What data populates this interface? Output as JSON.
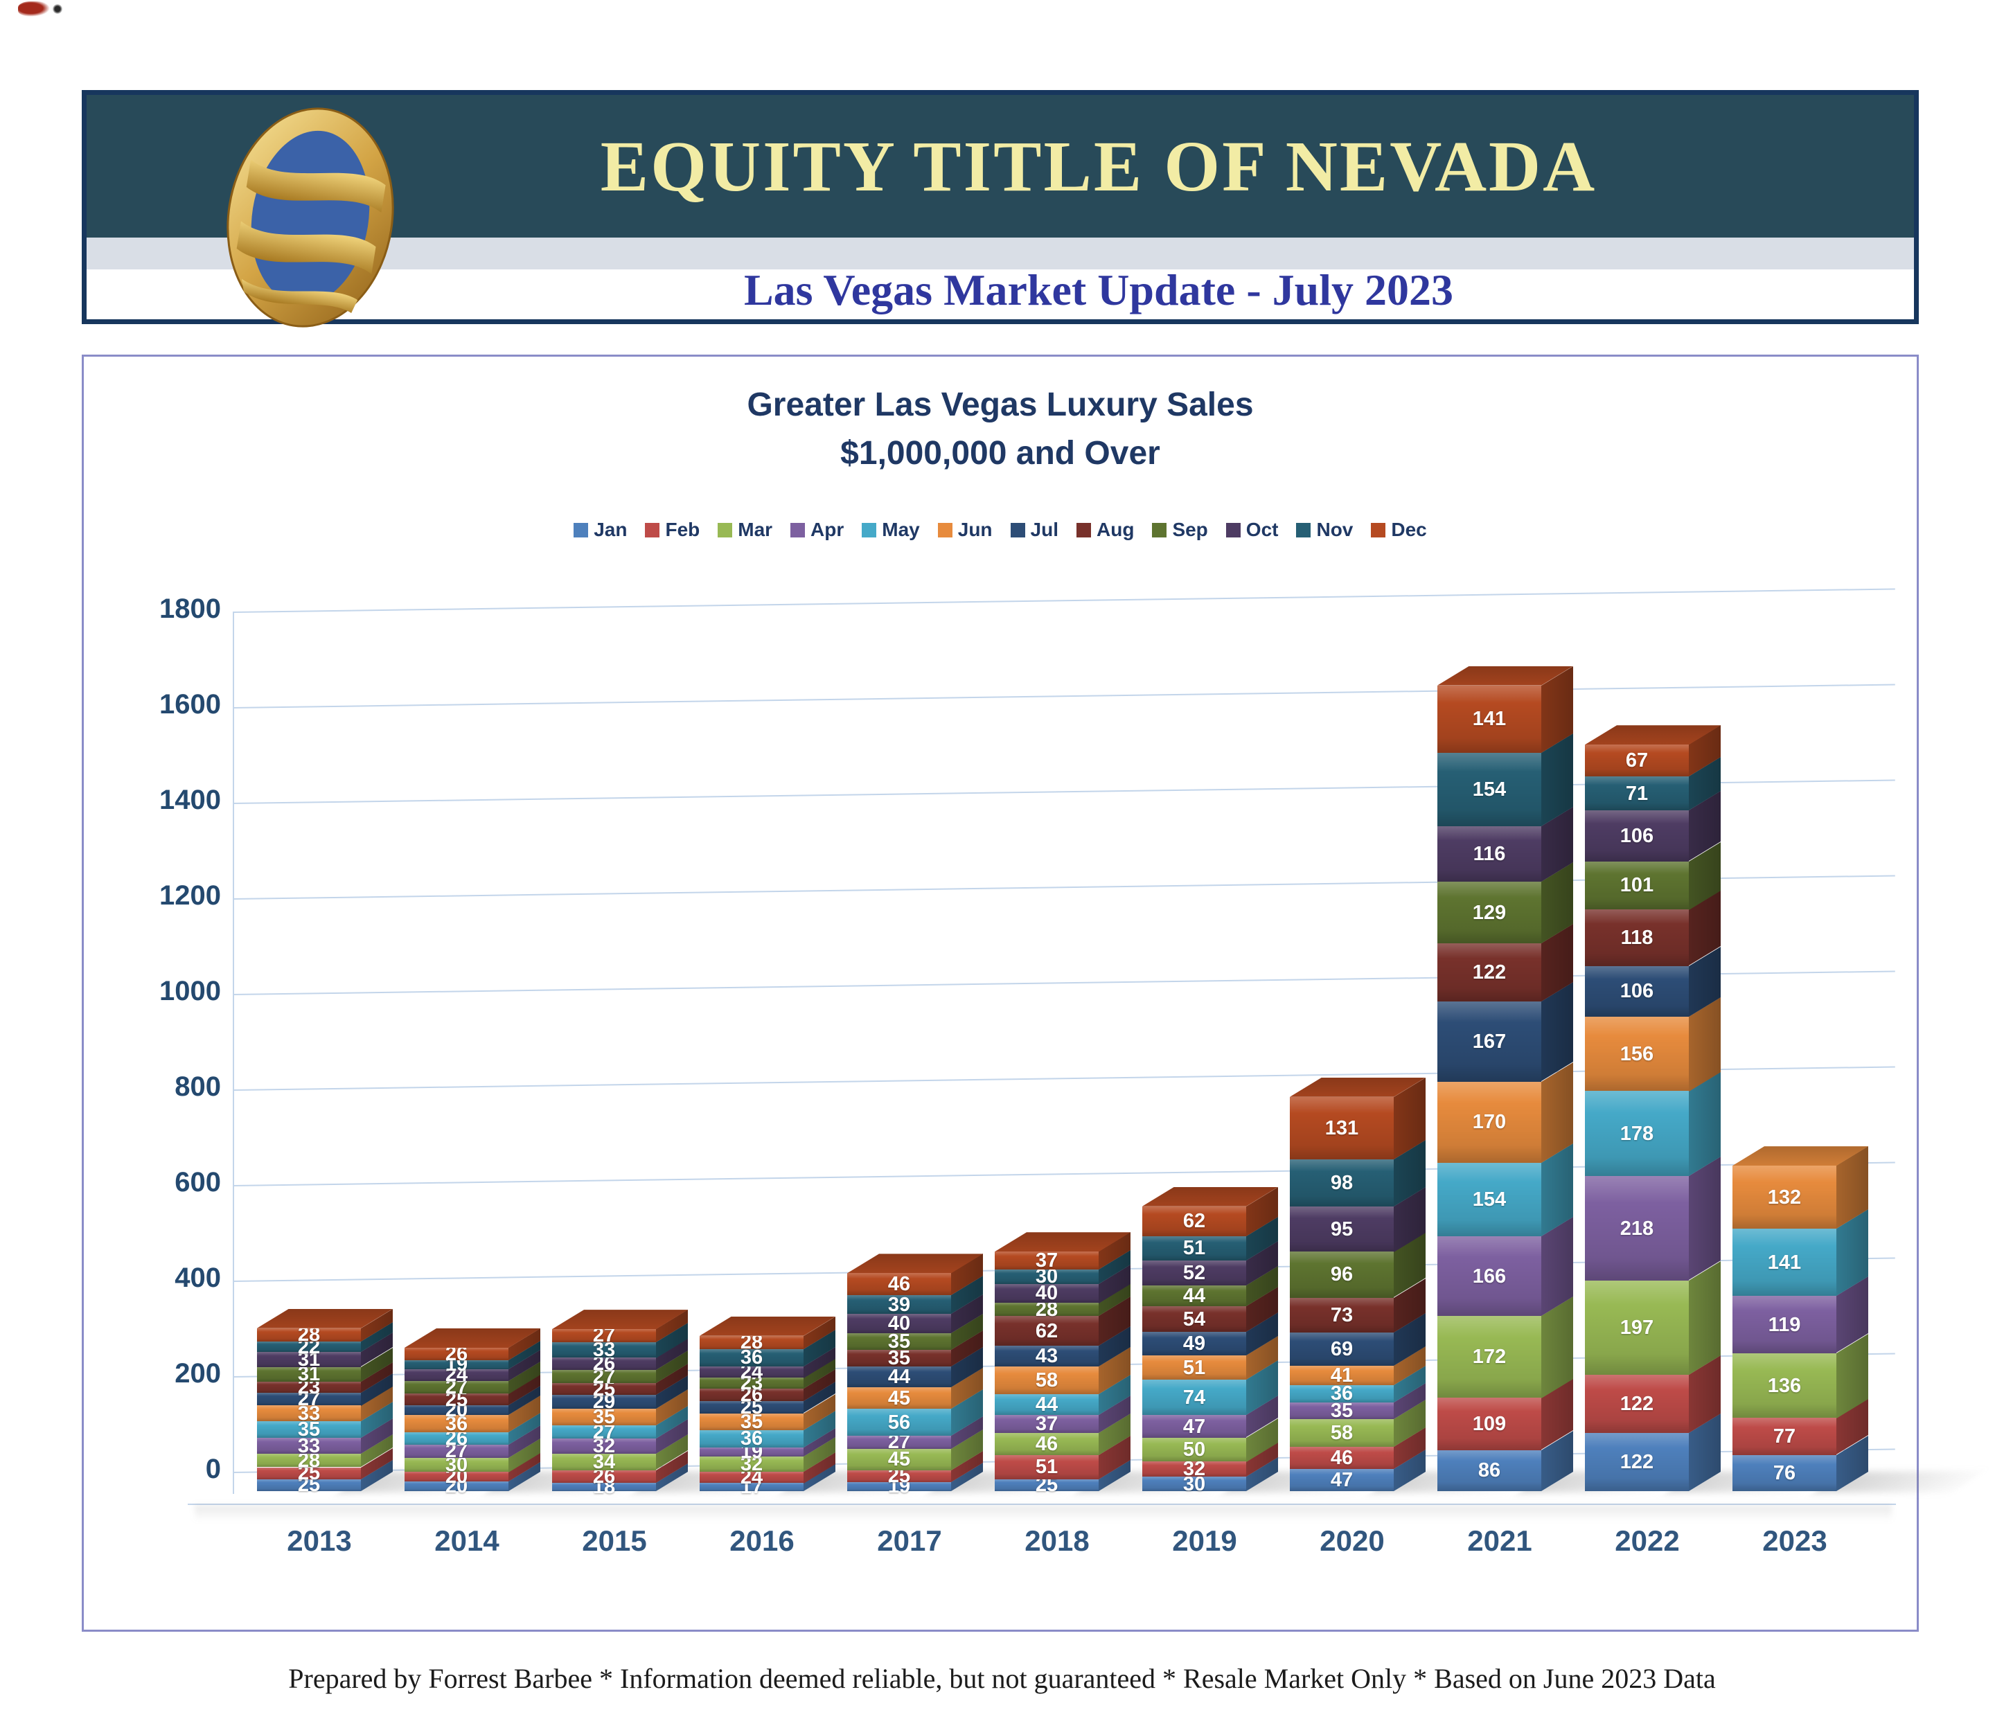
{
  "header": {
    "company": "EQUITY TITLE OF NEVADA",
    "subtitle": "Las Vegas Market Update - July 2023"
  },
  "chart": {
    "title_line1": "Greater Las Vegas Luxury Sales",
    "title_line2": "$1,000,000 and Over"
  },
  "footer": {
    "text": "Prepared by Forrest Barbee * Information deemed reliable, but not guaranteed * Resale Market Only * Based on June 2023 Data"
  },
  "chart_data": {
    "type": "bar",
    "stacked": true,
    "style": "3d-column",
    "title": "Greater Las Vegas Luxury Sales $1,000,000 and Over",
    "categories": [
      "2013",
      "2014",
      "2015",
      "2016",
      "2017",
      "2018",
      "2019",
      "2020",
      "2021",
      "2022",
      "2023"
    ],
    "series": [
      {
        "name": "Jan",
        "color": "#4E80BC",
        "values": [
          25,
          20,
          18,
          17,
          19,
          25,
          30,
          47,
          86,
          122,
          76
        ]
      },
      {
        "name": "Feb",
        "color": "#BE4B48",
        "values": [
          25,
          20,
          26,
          24,
          25,
          51,
          32,
          46,
          109,
          122,
          77
        ]
      },
      {
        "name": "Mar",
        "color": "#98B954",
        "values": [
          28,
          30,
          34,
          32,
          45,
          46,
          50,
          58,
          172,
          197,
          136
        ]
      },
      {
        "name": "Apr",
        "color": "#7D60A0",
        "values": [
          33,
          27,
          32,
          19,
          27,
          37,
          47,
          35,
          166,
          218,
          119
        ]
      },
      {
        "name": "May",
        "color": "#45A9C8",
        "values": [
          35,
          26,
          27,
          36,
          56,
          44,
          74,
          36,
          154,
          178,
          141
        ]
      },
      {
        "name": "Jun",
        "color": "#E78B3D",
        "values": [
          33,
          36,
          35,
          35,
          45,
          58,
          51,
          41,
          170,
          156,
          132
        ]
      },
      {
        "name": "Jul",
        "color": "#2D4D76",
        "values": [
          27,
          20,
          29,
          25,
          44,
          43,
          49,
          69,
          167,
          106,
          null
        ]
      },
      {
        "name": "Aug",
        "color": "#78312B",
        "values": [
          23,
          25,
          25,
          26,
          35,
          62,
          54,
          73,
          122,
          118,
          null
        ]
      },
      {
        "name": "Sep",
        "color": "#5E7430",
        "values": [
          31,
          27,
          27,
          23,
          35,
          28,
          44,
          96,
          129,
          101,
          null
        ]
      },
      {
        "name": "Oct",
        "color": "#4E3C63",
        "values": [
          31,
          24,
          26,
          24,
          40,
          40,
          52,
          95,
          116,
          106,
          null
        ]
      },
      {
        "name": "Nov",
        "color": "#265F74",
        "values": [
          22,
          19,
          33,
          36,
          39,
          30,
          51,
          98,
          154,
          71,
          null
        ]
      },
      {
        "name": "Dec",
        "color": "#B54A21",
        "values": [
          28,
          26,
          27,
          28,
          46,
          37,
          62,
          131,
          141,
          67,
          null
        ]
      }
    ],
    "ylim": [
      0,
      1800
    ],
    "ytick_step": 200,
    "legend_position": "top",
    "gridlines": true,
    "data_labels": true
  }
}
